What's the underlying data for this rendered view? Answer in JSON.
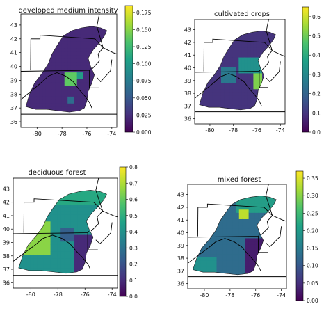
{
  "chart_data": [
    {
      "type": "heatmap",
      "title": "developed medium intensity",
      "x_ticks": [
        "-80",
        "-78",
        "-76",
        "-74"
      ],
      "y_ticks": [
        "36",
        "37",
        "38",
        "39",
        "40",
        "41",
        "42",
        "43"
      ],
      "colorbar_ticks": [
        "0.000",
        "0.025",
        "0.050",
        "0.075",
        "0.100",
        "0.125",
        "0.150",
        "0.175"
      ],
      "colorbar_range": [
        0,
        0.185
      ],
      "colormap": "viridis"
    },
    {
      "type": "heatmap",
      "title": "cultivated crops",
      "x_ticks": [
        "-80",
        "-78",
        "-76",
        "-74"
      ],
      "y_ticks": [
        "36",
        "37",
        "38",
        "39",
        "40",
        "41",
        "42",
        "43"
      ],
      "colorbar_ticks": [
        "0.0",
        "0.1",
        "0.2",
        "0.3",
        "0.4",
        "0.5",
        "0.6"
      ],
      "colorbar_range": [
        0,
        0.65
      ],
      "colormap": "viridis"
    },
    {
      "type": "heatmap",
      "title": "deciduous forest",
      "x_ticks": [
        "-80",
        "-78",
        "-76",
        "-74"
      ],
      "y_ticks": [
        "36",
        "37",
        "38",
        "39",
        "40",
        "41",
        "42",
        "43"
      ],
      "colorbar_ticks": [
        "0.0",
        "0.1",
        "0.2",
        "0.3",
        "0.4",
        "0.5",
        "0.6",
        "0.7",
        "0.8"
      ],
      "colorbar_range": [
        0,
        0.8
      ],
      "colormap": "viridis"
    },
    {
      "type": "heatmap",
      "title": "mixed forest",
      "x_ticks": [
        "-80",
        "-78",
        "-76",
        "-74"
      ],
      "y_ticks": [
        "36",
        "37",
        "38",
        "39",
        "40",
        "41",
        "42",
        "43"
      ],
      "colorbar_ticks": [
        "0.00",
        "0.05",
        "0.10",
        "0.15",
        "0.20",
        "0.25",
        "0.30",
        "0.35"
      ],
      "colorbar_range": [
        0,
        0.37
      ],
      "colormap": "viridis"
    }
  ]
}
